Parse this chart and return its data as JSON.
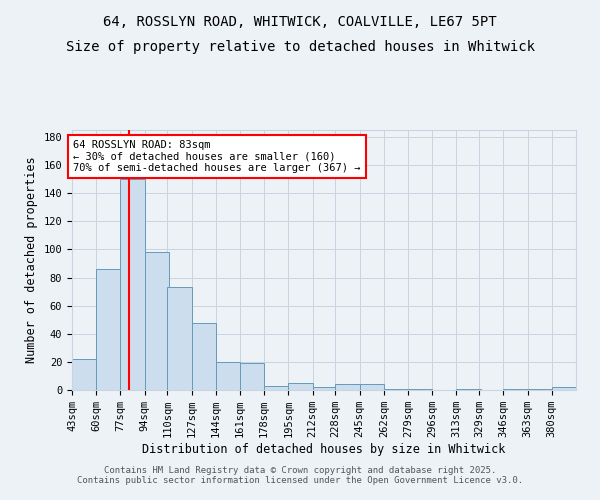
{
  "title_line1": "64, ROSSLYN ROAD, WHITWICK, COALVILLE, LE67 5PT",
  "title_line2": "Size of property relative to detached houses in Whitwick",
  "xlabel": "Distribution of detached houses by size in Whitwick",
  "ylabel": "Number of detached properties",
  "bins": [
    "43sqm",
    "60sqm",
    "77sqm",
    "94sqm",
    "110sqm",
    "127sqm",
    "144sqm",
    "161sqm",
    "178sqm",
    "195sqm",
    "212sqm",
    "228sqm",
    "245sqm",
    "262sqm",
    "279sqm",
    "296sqm",
    "313sqm",
    "329sqm",
    "346sqm",
    "363sqm",
    "380sqm"
  ],
  "bin_edges": [
    43,
    60,
    77,
    94,
    110,
    127,
    144,
    161,
    178,
    195,
    212,
    228,
    245,
    262,
    279,
    296,
    313,
    329,
    346,
    363,
    380
  ],
  "bin_width": 17,
  "values": [
    22,
    86,
    150,
    98,
    73,
    48,
    20,
    19,
    3,
    5,
    2,
    4,
    4,
    1,
    1,
    0,
    1,
    0,
    1,
    1,
    2
  ],
  "bar_color": "#ccdded",
  "bar_edge_color": "#6699bb",
  "grid_color": "#c8d4e0",
  "red_line_x": 83,
  "annotation_text": "64 ROSSLYN ROAD: 83sqm\n← 30% of detached houses are smaller (160)\n70% of semi-detached houses are larger (367) →",
  "annotation_box_facecolor": "white",
  "annotation_box_edgecolor": "red",
  "ylim": [
    0,
    185
  ],
  "yticks": [
    0,
    20,
    40,
    60,
    80,
    100,
    120,
    140,
    160,
    180
  ],
  "footer_line1": "Contains HM Land Registry data © Crown copyright and database right 2025.",
  "footer_line2": "Contains public sector information licensed under the Open Government Licence v3.0.",
  "background_color": "#edf2f7",
  "title_fontsize": 10,
  "axis_label_fontsize": 8.5,
  "tick_fontsize": 7.5,
  "annotation_fontsize": 7.5,
  "footer_fontsize": 6.5
}
